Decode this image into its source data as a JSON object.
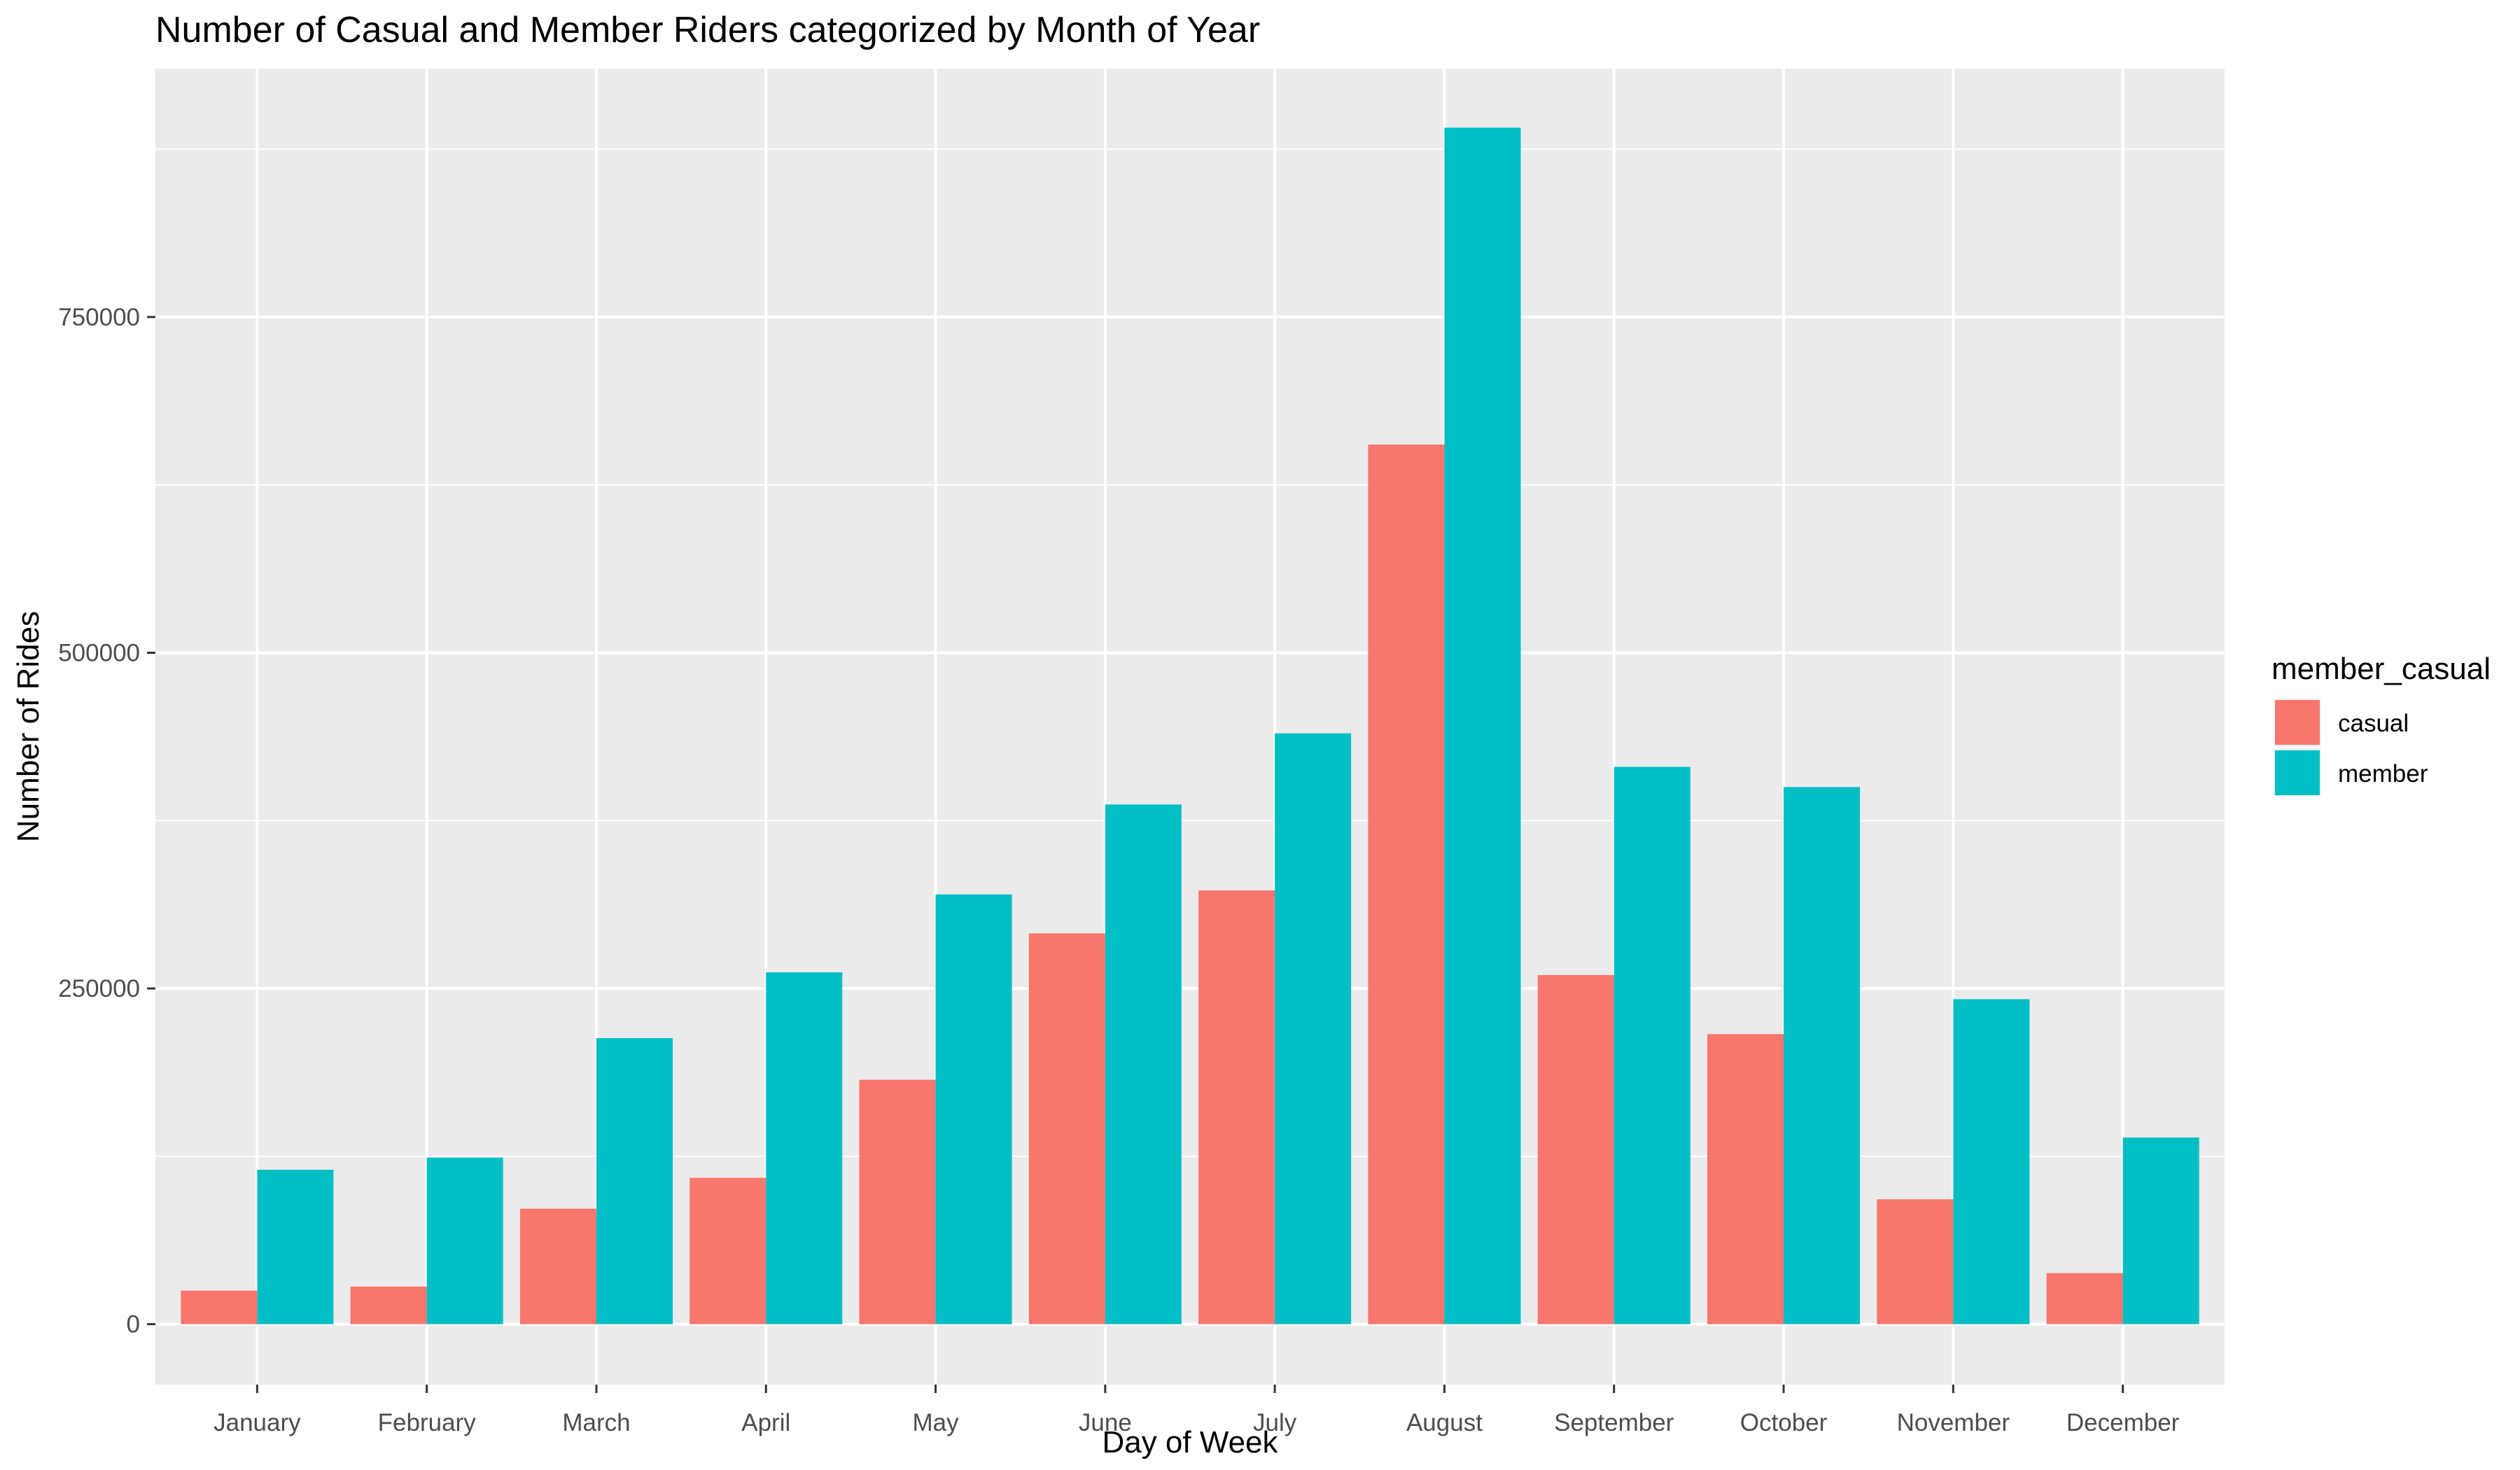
{
  "chart_data": {
    "type": "bar",
    "title": "Number of Casual and Member Riders categorized by Month of Year",
    "xlabel": "Day of Week",
    "ylabel": "Number of Rides",
    "categories": [
      "January",
      "February",
      "March",
      "April",
      "May",
      "June",
      "July",
      "August",
      "September",
      "October",
      "November",
      "December"
    ],
    "series": [
      {
        "name": "casual",
        "color": "#F8766D",
        "values": [
          25000,
          28000,
          86000,
          109000,
          182000,
          291000,
          323000,
          655000,
          260000,
          216000,
          93000,
          38000
        ]
      },
      {
        "name": "member",
        "color": "#00BFC4",
        "values": [
          115000,
          124000,
          213000,
          262000,
          320000,
          387000,
          440000,
          891000,
          415000,
          400000,
          242000,
          139000
        ]
      }
    ],
    "yticks": [
      0,
      250000,
      500000,
      750000
    ],
    "ylim": [
      -45000,
      935000
    ],
    "legend": {
      "title": "member_casual",
      "position": "right"
    },
    "grid": true,
    "panel_background": "#EBEBEB"
  }
}
